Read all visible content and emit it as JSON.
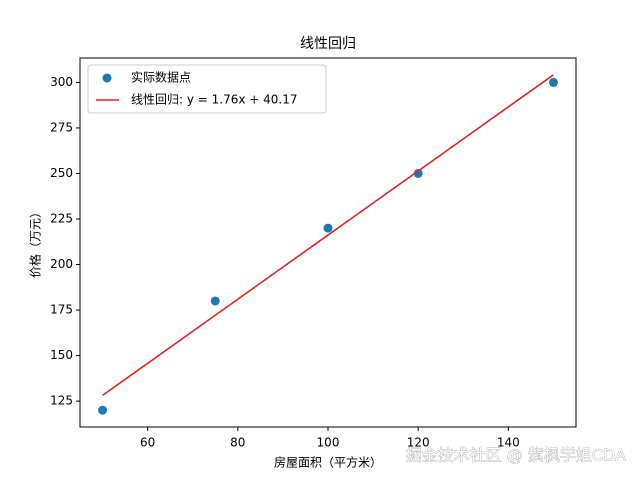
{
  "chart_data": {
    "type": "scatter",
    "title": "线性回归",
    "x_label": "房屋面积（平方米）",
    "y_label": "价格（万元）",
    "xlim": [
      45,
      155
    ],
    "xticks": [
      60,
      80,
      100,
      120,
      140
    ],
    "ylim": [
      110.8,
      313.4
    ],
    "yticks": [
      125,
      150,
      175,
      200,
      225,
      250,
      275,
      300
    ],
    "legend": "upper left",
    "series": [
      {
        "name": "实际数据点",
        "type": "scatter",
        "color": "#1f77b4",
        "x": [
          50,
          75,
          100,
          120,
          150
        ],
        "values": [
          120,
          180,
          220,
          250,
          300
        ]
      },
      {
        "name": "线性回归: y = 1.76x + 40.17",
        "type": "line",
        "color": "#d62728",
        "x": [
          50,
          75,
          100,
          120,
          150
        ],
        "values": [
          128.17,
          172.17,
          216.17,
          251.37,
          304.17
        ]
      }
    ]
  },
  "watermark": "掘金技术社区 @ 紫枫学姐CDA"
}
